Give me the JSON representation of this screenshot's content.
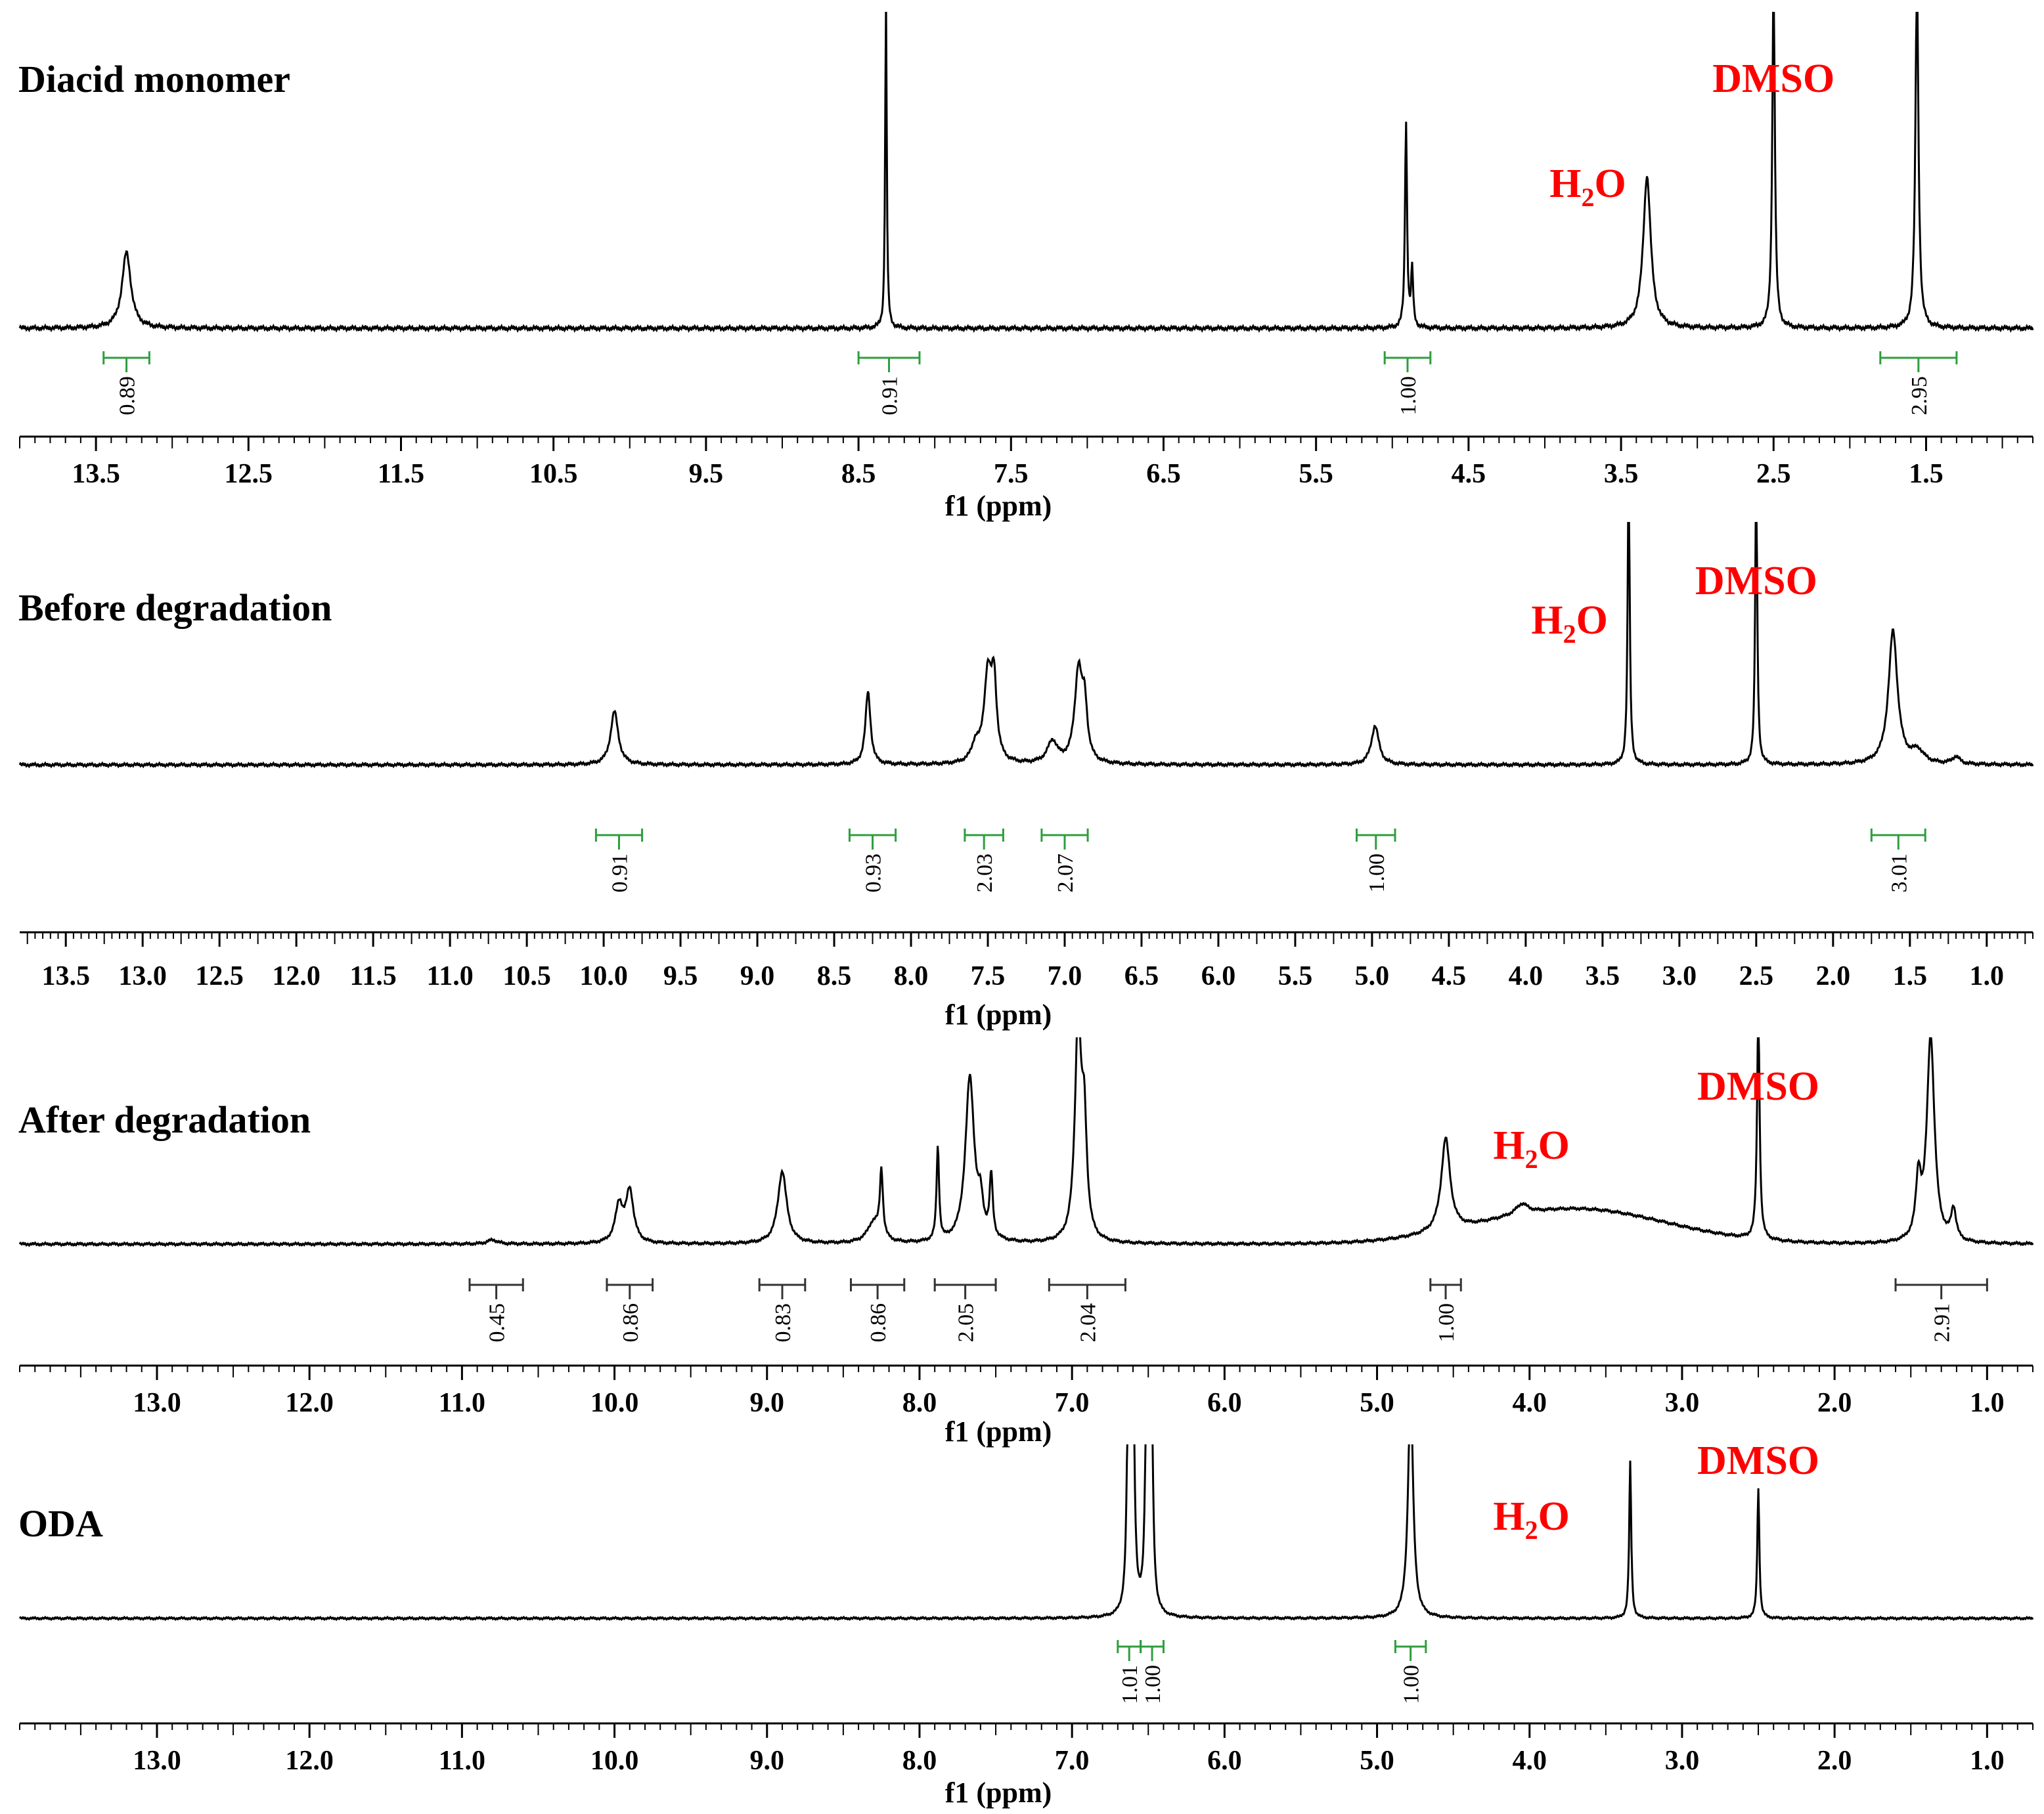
{
  "figure": {
    "colors": {
      "trace": "#000000",
      "axis": "#000000",
      "integration_green": "#2e9e3e",
      "integration_black": "#333333",
      "annotation": "#ff0000"
    }
  },
  "chart_data": [
    {
      "type": "line",
      "title": "Diacid  monomer",
      "xlabel": "f1 (ppm)",
      "xlim": [
        14.0,
        0.8
      ],
      "ticks": [
        "13.5",
        "12.5",
        "11.5",
        "10.5",
        "9.5",
        "8.5",
        "7.5",
        "6.5",
        "5.5",
        "4.5",
        "3.5",
        "2.5",
        "1.5"
      ],
      "annotations": [
        {
          "text": "DMSO",
          "ppm": 2.5
        },
        {
          "base": "H",
          "sub": "2",
          "tail": "O",
          "ppm": 3.33
        }
      ],
      "peaks": [
        {
          "ppm": 13.3,
          "height": 0.24,
          "width": 0.035
        },
        {
          "ppm": 8.32,
          "height": 1.08,
          "width": 0.006
        },
        {
          "ppm": 4.91,
          "height": 0.65,
          "width": 0.008
        },
        {
          "ppm": 4.87,
          "height": 0.18,
          "width": 0.008
        },
        {
          "ppm": 3.33,
          "height": 0.48,
          "width": 0.03
        },
        {
          "ppm": 2.5,
          "height": 1.1,
          "width": 0.01
        },
        {
          "ppm": 1.56,
          "height": 1.1,
          "width": 0.012
        }
      ],
      "integrals": [
        {
          "value": "0.89",
          "from": 13.45,
          "to": 13.15
        },
        {
          "value": "0.91",
          "from": 8.5,
          "to": 8.1
        },
        {
          "value": "1.00",
          "from": 5.05,
          "to": 4.75
        },
        {
          "value": "2.95",
          "from": 1.8,
          "to": 1.3
        }
      ]
    },
    {
      "type": "line",
      "title": "Before degradation",
      "xlabel": "f1 (ppm)",
      "xlim": [
        13.8,
        0.7
      ],
      "ticks": [
        "13.5",
        "13.0",
        "12.5",
        "12.0",
        "11.5",
        "11.0",
        "10.5",
        "10.0",
        "9.5",
        "9.0",
        "8.5",
        "8.0",
        "7.5",
        "7.0",
        "6.5",
        "6.0",
        "5.5",
        "5.0",
        "4.5",
        "4.0",
        "3.5",
        "3.0",
        "2.5",
        "2.0",
        "1.5",
        "1.0"
      ],
      "annotations": [
        {
          "text": "DMSO",
          "ppm": 2.5
        },
        {
          "base": "H",
          "sub": "2",
          "tail": "O",
          "ppm": 3.33
        }
      ],
      "peaks": [
        {
          "ppm": 9.93,
          "height": 0.22,
          "width": 0.03
        },
        {
          "ppm": 8.28,
          "height": 0.3,
          "width": 0.02
        },
        {
          "ppm": 7.58,
          "height": 0.07,
          "width": 0.03
        },
        {
          "ppm": 7.5,
          "height": 0.36,
          "width": 0.03
        },
        {
          "ppm": 7.46,
          "height": 0.3,
          "width": 0.02
        },
        {
          "ppm": 7.08,
          "height": 0.09,
          "width": 0.04
        },
        {
          "ppm": 6.91,
          "height": 0.38,
          "width": 0.03
        },
        {
          "ppm": 6.87,
          "height": 0.2,
          "width": 0.02
        },
        {
          "ppm": 4.98,
          "height": 0.16,
          "width": 0.03
        },
        {
          "ppm": 3.33,
          "height": 1.2,
          "width": 0.008
        },
        {
          "ppm": 2.5,
          "height": 1.2,
          "width": 0.008
        },
        {
          "ppm": 1.61,
          "height": 0.55,
          "width": 0.035
        },
        {
          "ppm": 1.45,
          "height": 0.05,
          "width": 0.05
        },
        {
          "ppm": 1.2,
          "height": 0.03,
          "width": 0.03
        }
      ],
      "integrals": [
        {
          "value": "0.91",
          "from": 10.05,
          "to": 9.75
        },
        {
          "value": "0.93",
          "from": 8.4,
          "to": 8.1
        },
        {
          "value": "2.03",
          "from": 7.65,
          "to": 7.4
        },
        {
          "value": "2.07",
          "from": 7.15,
          "to": 6.85
        },
        {
          "value": "1.00",
          "from": 5.1,
          "to": 4.85
        },
        {
          "value": "3.01",
          "from": 1.75,
          "to": 1.4
        }
      ]
    },
    {
      "type": "line",
      "title": "After degradation",
      "xlabel": "f1 (ppm)",
      "xlim": [
        13.9,
        0.7
      ],
      "ticks": [
        "13.0",
        "12.0",
        "11.0",
        "10.0",
        "9.0",
        "8.0",
        "7.0",
        "6.0",
        "5.0",
        "4.0",
        "3.0",
        "2.0",
        "1.0"
      ],
      "annotations": [
        {
          "text": "DMSO",
          "ppm": 2.5
        },
        {
          "base": "H",
          "sub": "2",
          "tail": "O",
          "ppm": 3.6
        }
      ],
      "peaks": [
        {
          "ppm": 10.8,
          "height": 0.02,
          "width": 0.04
        },
        {
          "ppm": 9.97,
          "height": 0.18,
          "width": 0.03
        },
        {
          "ppm": 9.9,
          "height": 0.25,
          "width": 0.03
        },
        {
          "ppm": 8.9,
          "height": 0.35,
          "width": 0.035
        },
        {
          "ppm": 8.3,
          "height": 0.1,
          "width": 0.05
        },
        {
          "ppm": 8.25,
          "height": 0.32,
          "width": 0.012
        },
        {
          "ppm": 7.88,
          "height": 0.45,
          "width": 0.01
        },
        {
          "ppm": 7.67,
          "height": 0.8,
          "width": 0.035
        },
        {
          "ppm": 7.6,
          "height": 0.15,
          "width": 0.02
        },
        {
          "ppm": 7.53,
          "height": 0.3,
          "width": 0.012
        },
        {
          "ppm": 6.96,
          "height": 1.05,
          "width": 0.025
        },
        {
          "ppm": 6.92,
          "height": 0.5,
          "width": 0.02
        },
        {
          "ppm": 4.55,
          "height": 0.45,
          "width": 0.035
        },
        {
          "ppm": 4.05,
          "height": 0.05,
          "width": 0.05
        },
        {
          "ppm": 2.5,
          "height": 1.1,
          "width": 0.01
        },
        {
          "ppm": 1.45,
          "height": 0.28,
          "width": 0.02
        },
        {
          "ppm": 1.37,
          "height": 1.0,
          "width": 0.03
        },
        {
          "ppm": 1.22,
          "height": 0.15,
          "width": 0.02
        }
      ],
      "hump": {
        "center": 3.7,
        "height": 0.17,
        "width": 0.85
      },
      "integrals": [
        {
          "value": "0.45",
          "from": 10.95,
          "to": 10.6
        },
        {
          "value": "0.86",
          "from": 10.05,
          "to": 9.75
        },
        {
          "value": "0.83",
          "from": 9.05,
          "to": 8.75
        },
        {
          "value": "0.86",
          "from": 8.45,
          "to": 8.1
        },
        {
          "value": "2.05",
          "from": 7.9,
          "to": 7.5
        },
        {
          "value": "2.04",
          "from": 7.15,
          "to": 6.65
        },
        {
          "value": "1.00",
          "from": 4.65,
          "to": 4.45
        },
        {
          "value": "2.91",
          "from": 1.6,
          "to": 1.0
        }
      ]
    },
    {
      "type": "line",
      "title": "ODA",
      "xlabel": "f1 (ppm)",
      "xlim": [
        13.9,
        0.7
      ],
      "ticks": [
        "13.0",
        "12.0",
        "11.0",
        "10.0",
        "9.0",
        "8.0",
        "7.0",
        "6.0",
        "5.0",
        "4.0",
        "3.0",
        "2.0",
        "1.0"
      ],
      "annotations": [
        {
          "text": "DMSO",
          "ppm": 2.5
        },
        {
          "base": "H",
          "sub": "2",
          "tail": "O",
          "ppm": 3.6
        }
      ],
      "peaks": [
        {
          "ppm": 6.63,
          "height": 1.3,
          "width": 0.012
        },
        {
          "ppm": 6.6,
          "height": 1.3,
          "width": 0.012
        },
        {
          "ppm": 6.51,
          "height": 1.3,
          "width": 0.012
        },
        {
          "ppm": 6.48,
          "height": 1.3,
          "width": 0.012
        },
        {
          "ppm": 4.78,
          "height": 1.3,
          "width": 0.02
        },
        {
          "ppm": 3.34,
          "height": 0.9,
          "width": 0.008
        },
        {
          "ppm": 2.5,
          "height": 0.75,
          "width": 0.008
        }
      ],
      "integrals": [
        {
          "value": "1.01",
          "from": 6.7,
          "to": 6.55
        },
        {
          "value": "1.00",
          "from": 6.55,
          "to": 6.4
        },
        {
          "value": "1.00",
          "from": 4.88,
          "to": 4.68
        }
      ]
    }
  ]
}
